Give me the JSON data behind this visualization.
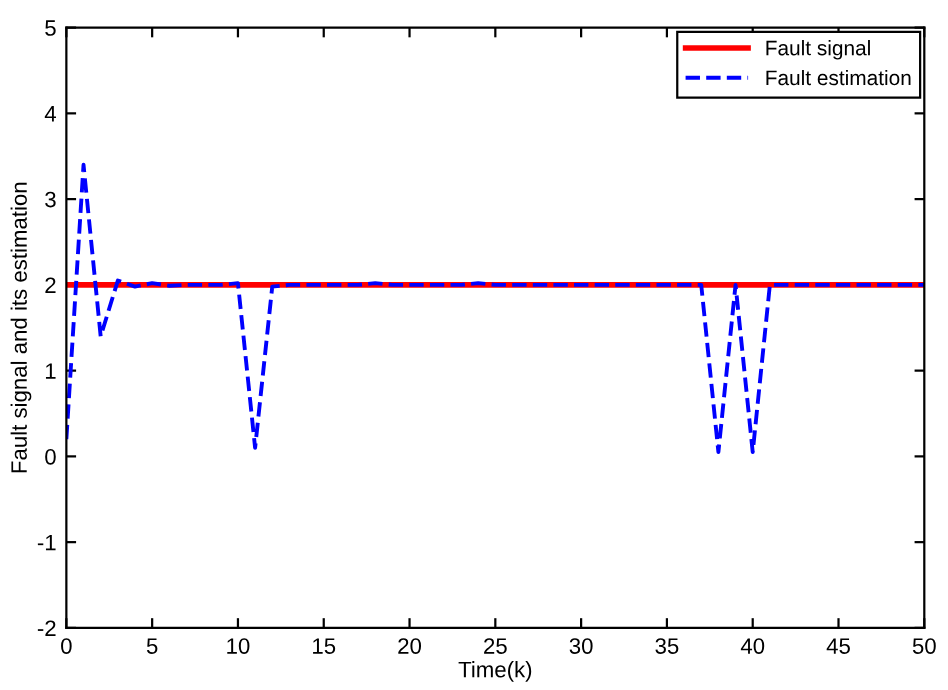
{
  "chart_data": {
    "type": "line",
    "xlabel": "Time(k)",
    "ylabel": "Fault signal and its estimation",
    "x": [
      0,
      1,
      2,
      3,
      4,
      5,
      6,
      7,
      8,
      9,
      10,
      11,
      12,
      13,
      14,
      15,
      16,
      17,
      18,
      19,
      20,
      21,
      22,
      23,
      24,
      25,
      26,
      27,
      28,
      29,
      30,
      31,
      32,
      33,
      34,
      35,
      36,
      37,
      38,
      39,
      40,
      41,
      42,
      43,
      44,
      45,
      46,
      47,
      48,
      49,
      50
    ],
    "series": [
      {
        "name": "Fault signal",
        "color": "#ff0000",
        "line_style": "solid",
        "values": [
          2,
          2,
          2,
          2,
          2,
          2,
          2,
          2,
          2,
          2,
          2,
          2,
          2,
          2,
          2,
          2,
          2,
          2,
          2,
          2,
          2,
          2,
          2,
          2,
          2,
          2,
          2,
          2,
          2,
          2,
          2,
          2,
          2,
          2,
          2,
          2,
          2,
          2,
          2,
          2,
          2,
          2,
          2,
          2,
          2,
          2,
          2,
          2,
          2,
          2,
          2
        ]
      },
      {
        "name": "Fault estimation",
        "color": "#0000ff",
        "line_style": "dashed",
        "values": [
          0.2,
          3.4,
          1.4,
          2.05,
          1.98,
          2.02,
          1.99,
          2.0,
          2.0,
          2.0,
          2.02,
          0.1,
          1.98,
          2.0,
          2.0,
          2.0,
          2.0,
          2.0,
          2.02,
          2.0,
          2.0,
          2.0,
          2.0,
          2.0,
          2.02,
          2.0,
          2.0,
          2.0,
          2.0,
          2.0,
          2.0,
          2.0,
          2.0,
          2.0,
          2.0,
          2.0,
          2.0,
          2.0,
          0.05,
          2.0,
          0.05,
          2.0,
          2.0,
          2.0,
          2.0,
          2.0,
          2.0,
          2.0,
          2.0,
          2.0,
          2.0
        ]
      }
    ],
    "xlim": [
      0,
      50
    ],
    "xticks": [
      0,
      5,
      10,
      15,
      20,
      25,
      30,
      35,
      40,
      45,
      50
    ],
    "ylim": [
      -2,
      5
    ],
    "yticks": [
      -2,
      -1,
      0,
      1,
      2,
      3,
      4,
      5
    ],
    "grid": false,
    "legend": "top right",
    "marker": "none"
  }
}
